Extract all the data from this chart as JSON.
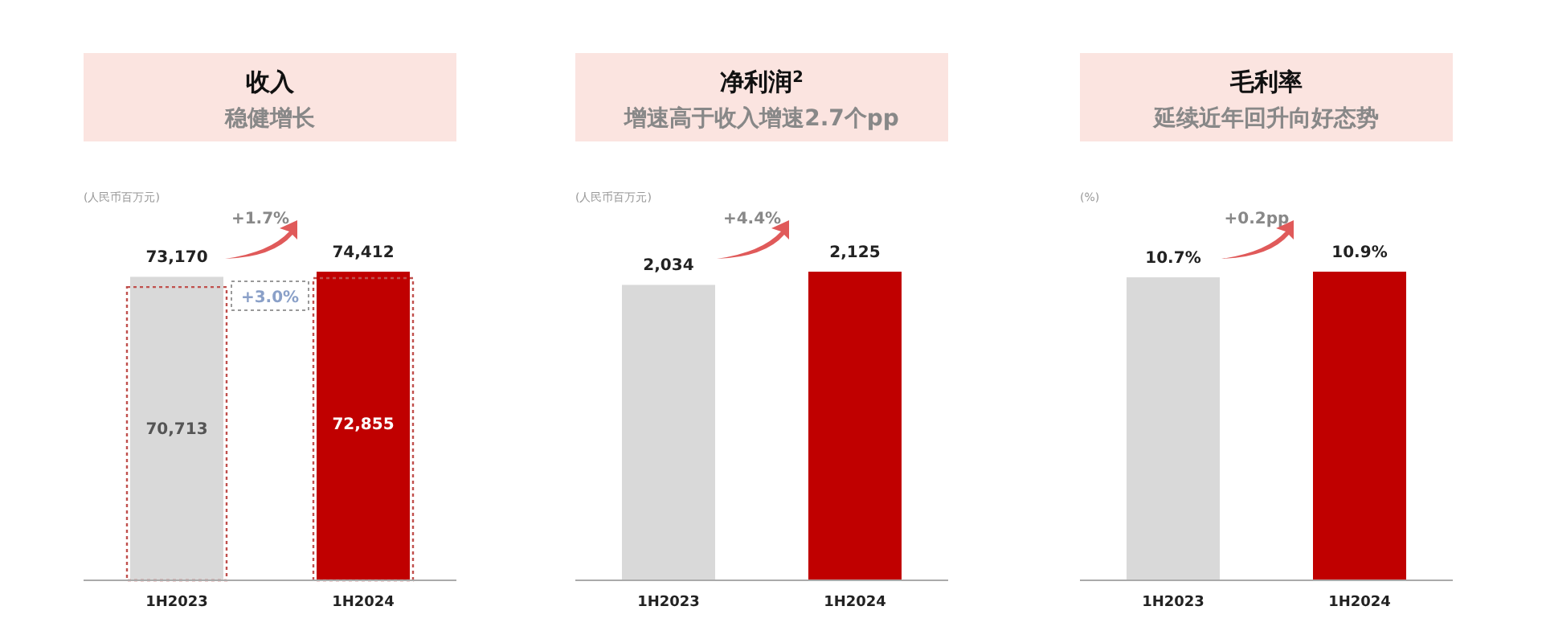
{
  "chart_data": [
    {
      "type": "bar",
      "title": "收入",
      "subtitle": "稳健增长",
      "ylabel": "(人民币百万元)",
      "categories": [
        "1H2023",
        "1H2024"
      ],
      "series": [
        {
          "colors": [
            "#d9d9d9",
            "#c00000"
          ],
          "values": [
            73170,
            74412
          ],
          "value_labels": [
            "73,170",
            "74,412"
          ]
        },
        {
          "color": "#c0504d",
          "line_style": "dotted",
          "values": [
            70713,
            72855
          ],
          "value_labels": [
            "70,713",
            "72,855"
          ]
        }
      ],
      "annotations": [
        "+1.7%",
        "+3.0%"
      ]
    },
    {
      "type": "bar",
      "title": "净利润$^{2}$",
      "subtitle": "增速高于收入增速2.7个pp",
      "ylabel": "(人民币百万元)",
      "categories": [
        "1H2023",
        "1H2024"
      ],
      "series": [
        {
          "colors": [
            "#d9d9d9",
            "#c00000"
          ],
          "values": [
            2034,
            2125
          ],
          "value_labels": [
            "2,034",
            "2,125"
          ]
        }
      ],
      "annotations": [
        "+4.4%"
      ]
    },
    {
      "type": "bar",
      "title": "毛利率",
      "subtitle": "延续近年回升向好态势",
      "ylabel": "(%)",
      "categories": [
        "1H2023",
        "1H2024"
      ],
      "series": [
        {
          "colors": [
            "#d9d9d9",
            "#c00000"
          ],
          "values": [
            10.7,
            10.9
          ],
          "value_labels": [
            "10.7%",
            "10.9%"
          ]
        }
      ],
      "annotations": [
        "+0.2pp"
      ]
    }
  ]
}
